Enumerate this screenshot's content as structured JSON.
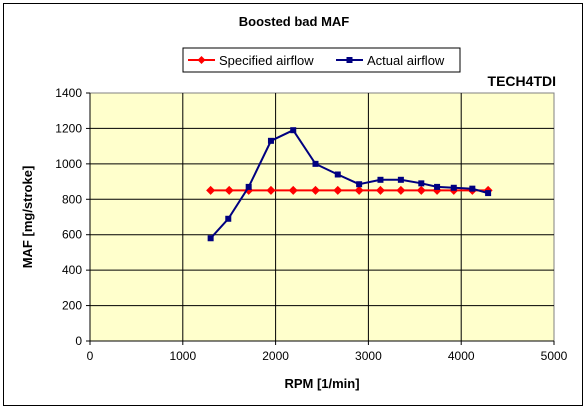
{
  "chart_data": {
    "type": "line",
    "title": "Boosted bad MAF",
    "watermark": "TECH4TDI",
    "xlabel": "RPM [1/min]",
    "ylabel": "MAF [mg/stroke]",
    "xlim": [
      0,
      5000
    ],
    "ylim": [
      0,
      1400
    ],
    "xticks": [
      0,
      1000,
      2000,
      3000,
      4000,
      5000
    ],
    "yticks": [
      0,
      200,
      400,
      600,
      800,
      1000,
      1200,
      1400
    ],
    "grid": true,
    "legend_position": "top",
    "plot_background": "#ffffcc",
    "series": [
      {
        "name": "Specified airflow",
        "color": "#ff0000",
        "marker": "diamond",
        "x": [
          1300,
          1500,
          1710,
          1950,
          2190,
          2430,
          2670,
          2900,
          3130,
          3350,
          3570,
          3740,
          3920,
          4120,
          4290
        ],
        "y": [
          850,
          850,
          850,
          850,
          850,
          850,
          850,
          850,
          850,
          850,
          850,
          850,
          850,
          850,
          850
        ]
      },
      {
        "name": "Actual airflow",
        "color": "#000080",
        "marker": "square",
        "x": [
          1300,
          1490,
          1710,
          1950,
          2190,
          2430,
          2670,
          2900,
          3130,
          3350,
          3570,
          3740,
          3920,
          4120,
          4290
        ],
        "y": [
          580,
          690,
          870,
          1130,
          1190,
          1000,
          940,
          885,
          910,
          910,
          890,
          870,
          865,
          860,
          835
        ]
      }
    ]
  }
}
